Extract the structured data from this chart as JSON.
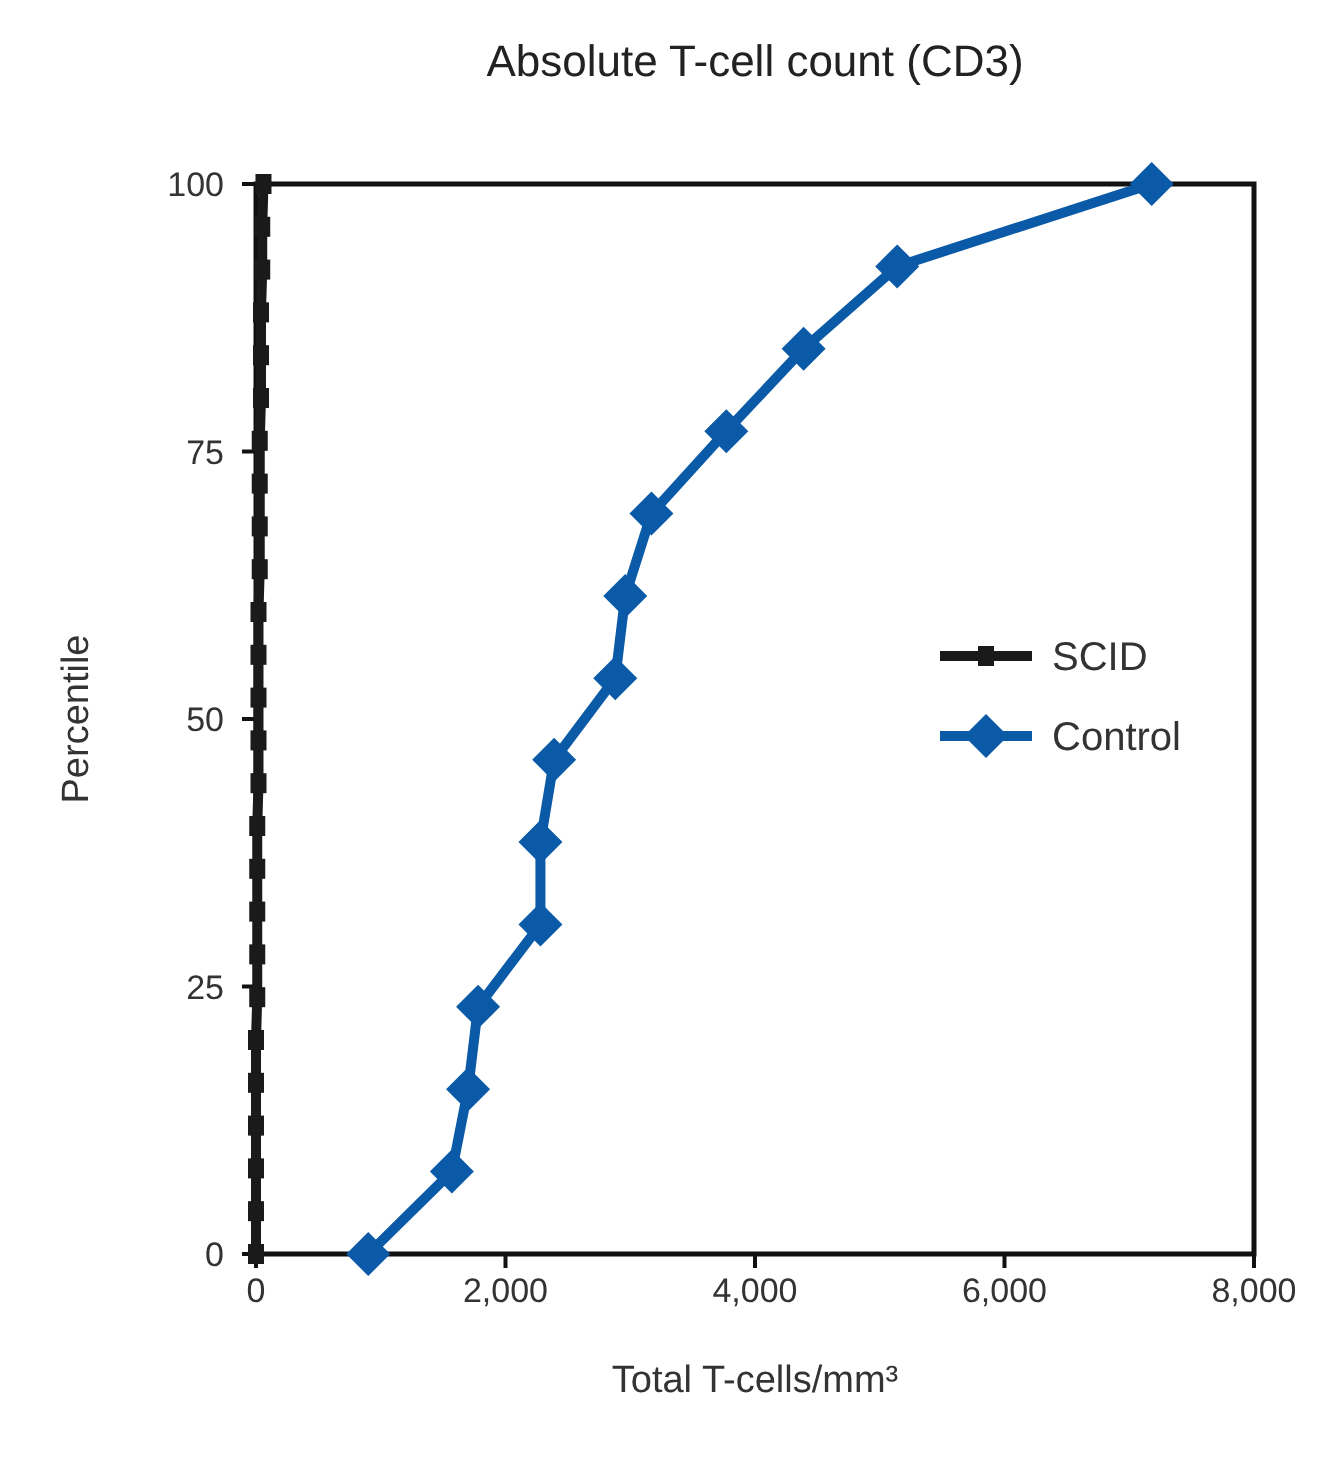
{
  "chart_data": {
    "type": "line",
    "title": "Absolute T-cell count (CD3)",
    "xlabel": "Total T-cells/mm³",
    "ylabel": "Percentile",
    "xlim": [
      0,
      8000
    ],
    "xticks": [
      0,
      {
        "value": 2000,
        "label": "2,000"
      },
      {
        "value": 4000,
        "label": "4,000"
      },
      {
        "value": 6000,
        "label": "6,000"
      },
      {
        "value": 8000,
        "label": "8,000"
      }
    ],
    "ylim": [
      0,
      100
    ],
    "yticks": [
      0,
      25,
      50,
      75,
      100
    ],
    "grid": false,
    "legend": "right",
    "line_style": "solid",
    "series": [
      {
        "name": "SCID",
        "color": "#1a1a1a",
        "marker": "square",
        "x": [
          0,
          0,
          0,
          0,
          0,
          0,
          10,
          10,
          10,
          10,
          10,
          20,
          20,
          20,
          20,
          20,
          30,
          30,
          30,
          30,
          40,
          40,
          40,
          50,
          50,
          60
        ],
        "values": [
          0,
          4,
          8,
          12,
          16,
          20,
          24,
          28,
          32,
          36,
          40,
          44,
          48,
          52,
          56,
          60,
          64,
          68,
          72,
          76,
          80,
          84,
          88,
          92,
          96,
          100
        ]
      },
      {
        "name": "Control",
        "color": "#0a5aa8",
        "marker": "diamond",
        "x": [
          900,
          1570,
          1700,
          1780,
          2280,
          2280,
          2390,
          2880,
          2960,
          3170,
          3770,
          4390,
          5140,
          7180
        ],
        "values": [
          0,
          7.7,
          15.4,
          23.1,
          30.8,
          38.5,
          46.2,
          53.8,
          61.5,
          69.2,
          76.9,
          84.6,
          92.3,
          100
        ]
      }
    ]
  }
}
